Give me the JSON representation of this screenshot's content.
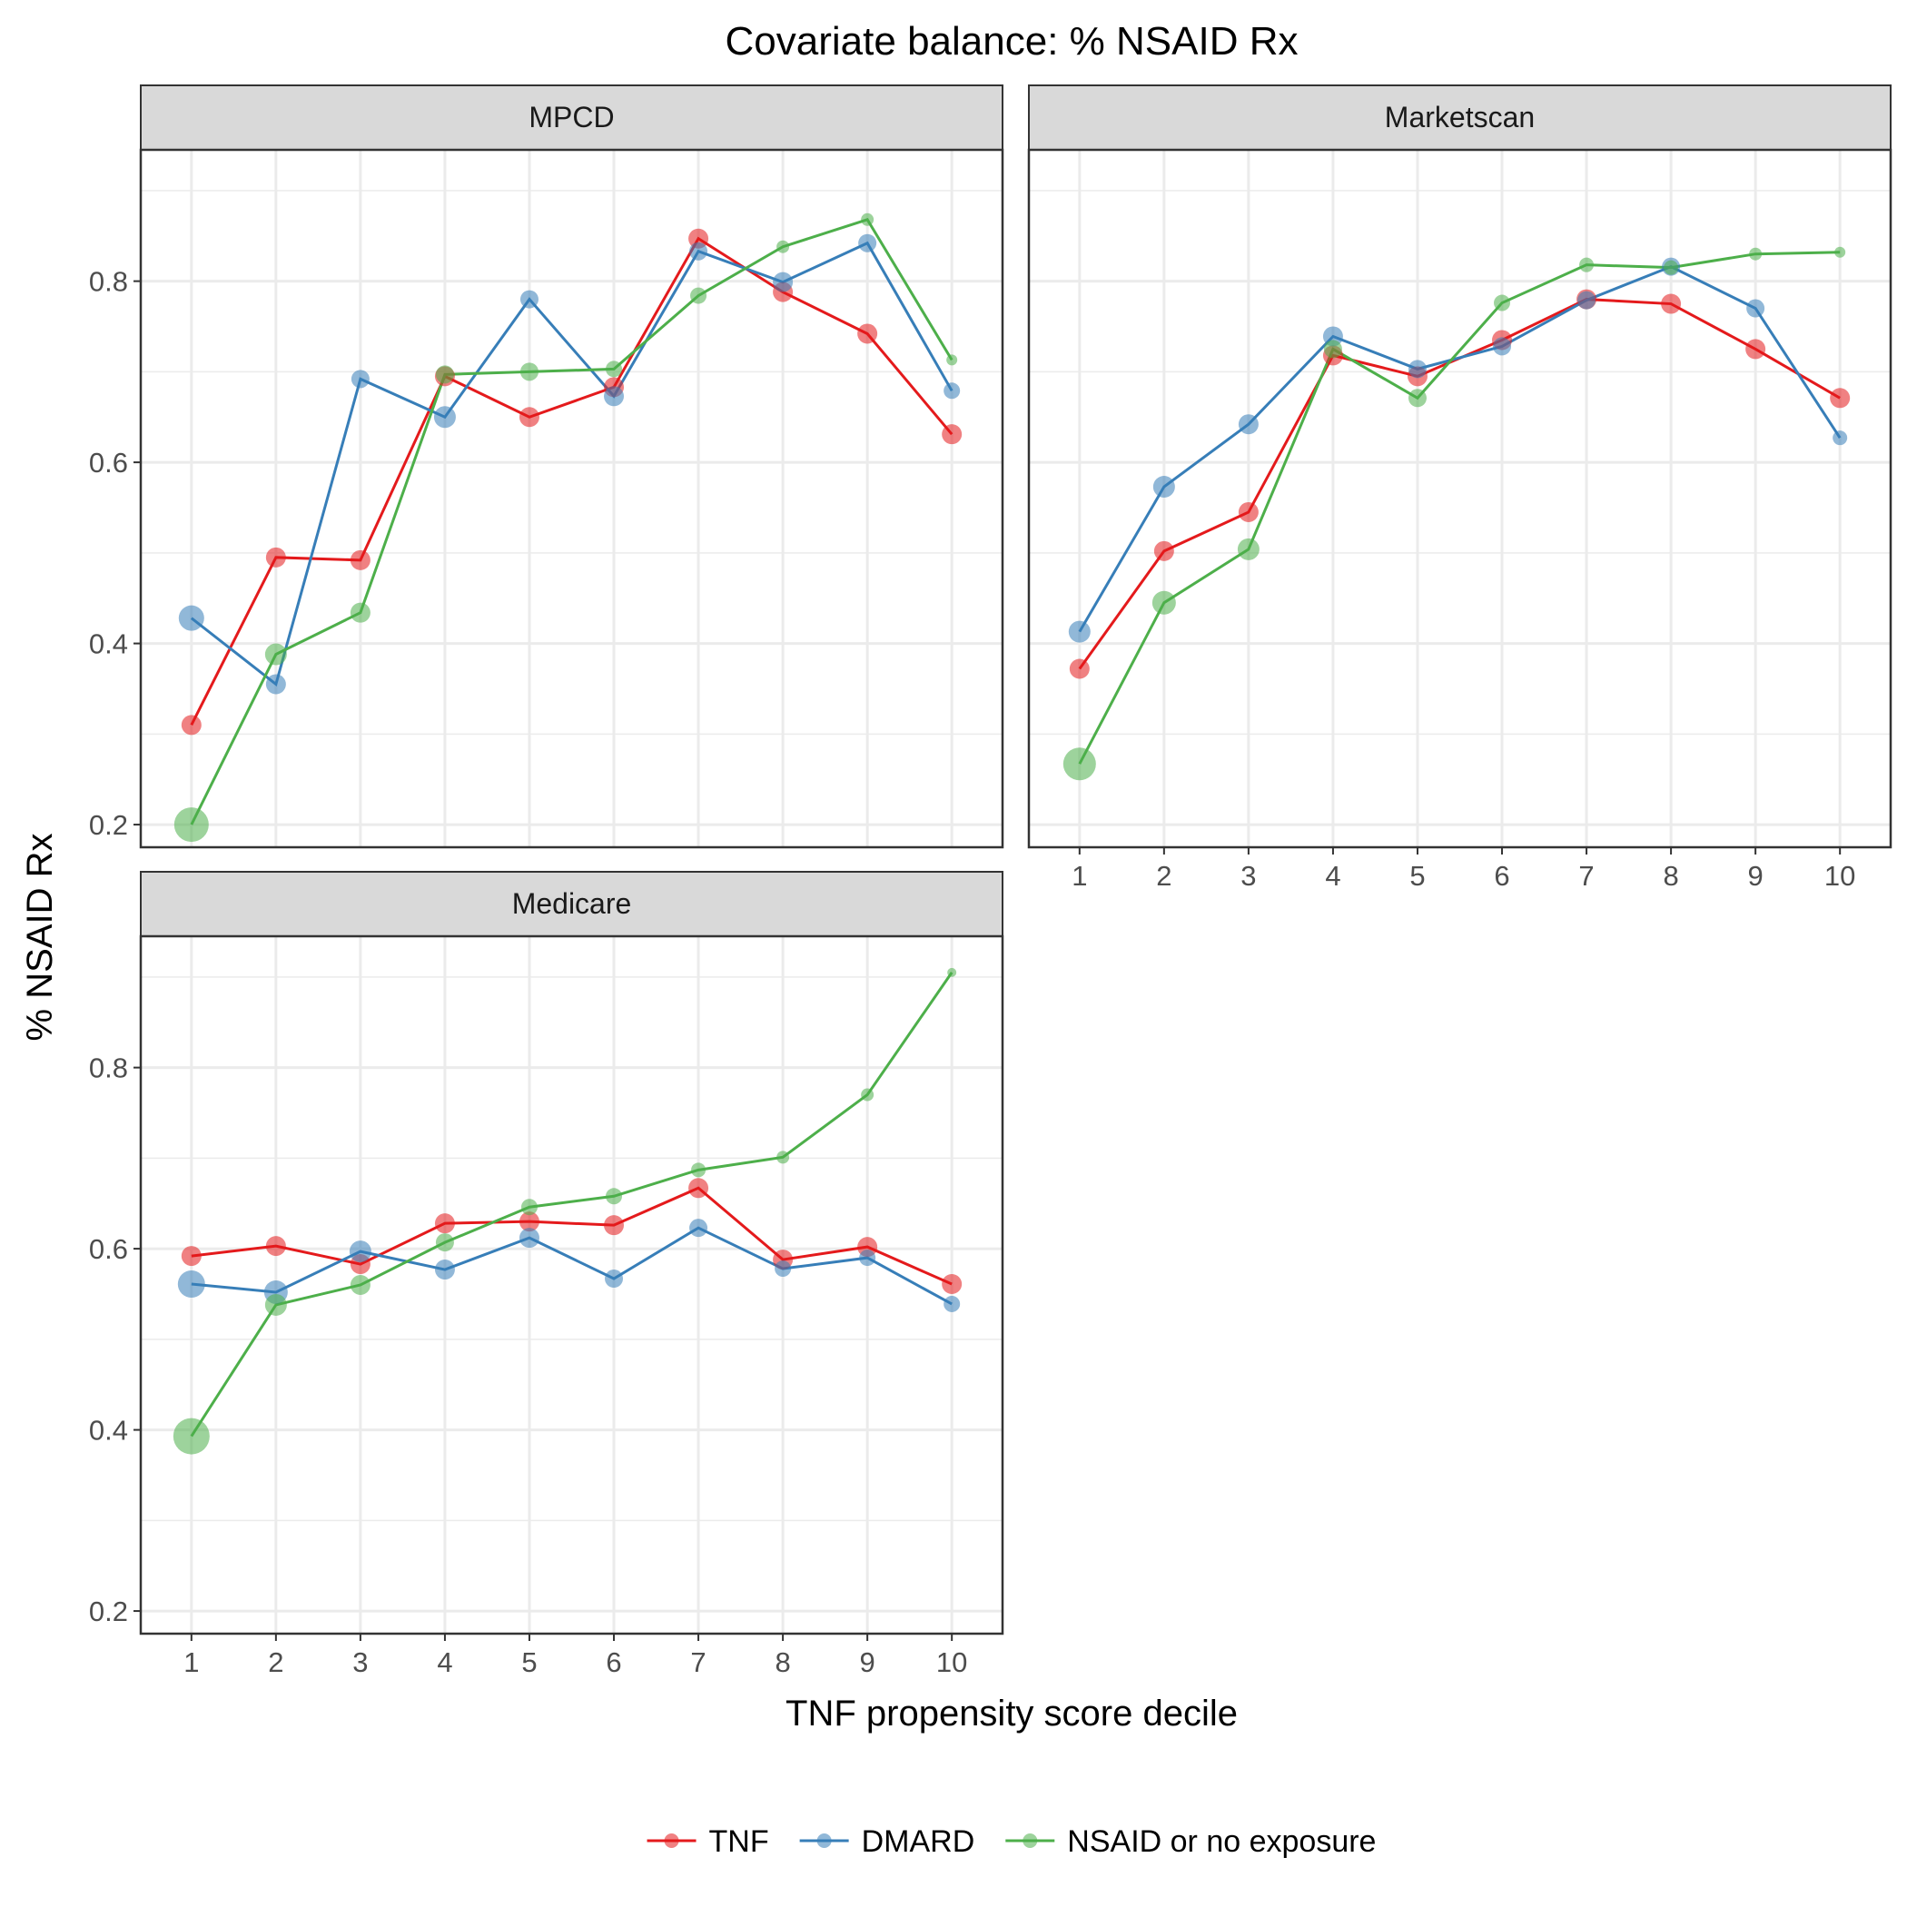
{
  "chart_data": {
    "type": "line",
    "title": "Covariate balance: % NSAID Rx",
    "xlabel": "TNF propensity score decile",
    "ylabel": "% NSAID Rx",
    "x": [
      1,
      2,
      3,
      4,
      5,
      6,
      7,
      8,
      9,
      10
    ],
    "x_tick_labels": [
      "1",
      "2",
      "3",
      "4",
      "5",
      "6",
      "7",
      "8",
      "9",
      "10"
    ],
    "y_tick_labels": [
      "0.2",
      "0.4",
      "0.6",
      "0.8"
    ],
    "ylim": [
      0.175,
      0.945
    ],
    "grid": true,
    "legend_position": "bottom",
    "series_styles": [
      {
        "name": "TNF",
        "color": "#E41A1C"
      },
      {
        "name": "DMARD",
        "color": "#377EB8"
      },
      {
        "name": "NSAID or no exposure",
        "color": "#4DAF4A"
      }
    ],
    "panels": [
      {
        "label": "MPCD",
        "series": [
          {
            "name": "TNF",
            "values": [
              0.31,
              0.495,
              0.492,
              0.695,
              0.65,
              0.683,
              0.847,
              0.788,
              0.742,
              0.631
            ],
            "sizes": [
              11,
              11,
              11,
              11,
              11,
              11,
              11,
              11,
              11,
              11
            ]
          },
          {
            "name": "DMARD",
            "values": [
              0.428,
              0.355,
              0.692,
              0.65,
              0.78,
              0.673,
              0.833,
              0.799,
              0.842,
              0.679
            ],
            "sizes": [
              14,
              11,
              10,
              12,
              10,
              11,
              10,
              11,
              10,
              9
            ]
          },
          {
            "name": "NSAID or no exposure",
            "values": [
              0.2,
              0.388,
              0.434,
              0.697,
              0.7,
              0.703,
              0.784,
              0.838,
              0.868,
              0.713
            ],
            "sizes": [
              19,
              12,
              11,
              10,
              10,
              9,
              9,
              7,
              7,
              6
            ]
          }
        ]
      },
      {
        "label": "Marketscan",
        "series": [
          {
            "name": "TNF",
            "values": [
              0.372,
              0.502,
              0.545,
              0.718,
              0.695,
              0.735,
              0.78,
              0.775,
              0.725,
              0.671
            ],
            "sizes": [
              11,
              11,
              11,
              11,
              11,
              11,
              11,
              11,
              11,
              11
            ]
          },
          {
            "name": "DMARD",
            "values": [
              0.413,
              0.573,
              0.642,
              0.739,
              0.703,
              0.728,
              0.779,
              0.816,
              0.77,
              0.627
            ],
            "sizes": [
              12,
              12,
              11,
              11,
              10,
              10,
              10,
              10,
              10,
              8
            ]
          },
          {
            "name": "NSAID or no exposure",
            "values": [
              0.267,
              0.445,
              0.504,
              0.725,
              0.671,
              0.776,
              0.818,
              0.815,
              0.83,
              0.832
            ],
            "sizes": [
              18,
              13,
              12,
              10,
              10,
              9,
              8,
              8,
              7,
              6
            ]
          }
        ]
      },
      {
        "label": "Medicare",
        "series": [
          {
            "name": "TNF",
            "values": [
              0.592,
              0.603,
              0.583,
              0.628,
              0.63,
              0.626,
              0.667,
              0.588,
              0.602,
              0.561
            ],
            "sizes": [
              11,
              11,
              11,
              11,
              11,
              11,
              11,
              11,
              11,
              11
            ]
          },
          {
            "name": "DMARD",
            "values": [
              0.561,
              0.552,
              0.597,
              0.577,
              0.612,
              0.567,
              0.623,
              0.578,
              0.59,
              0.539
            ],
            "sizes": [
              15,
              13,
              12,
              11,
              11,
              10,
              10,
              9,
              9,
              9
            ]
          },
          {
            "name": "NSAID or no exposure",
            "values": [
              0.393,
              0.538,
              0.56,
              0.607,
              0.646,
              0.658,
              0.687,
              0.701,
              0.77,
              0.905
            ],
            "sizes": [
              20,
              12,
              11,
              10,
              9,
              9,
              8,
              7,
              7,
              5
            ]
          }
        ]
      }
    ]
  }
}
